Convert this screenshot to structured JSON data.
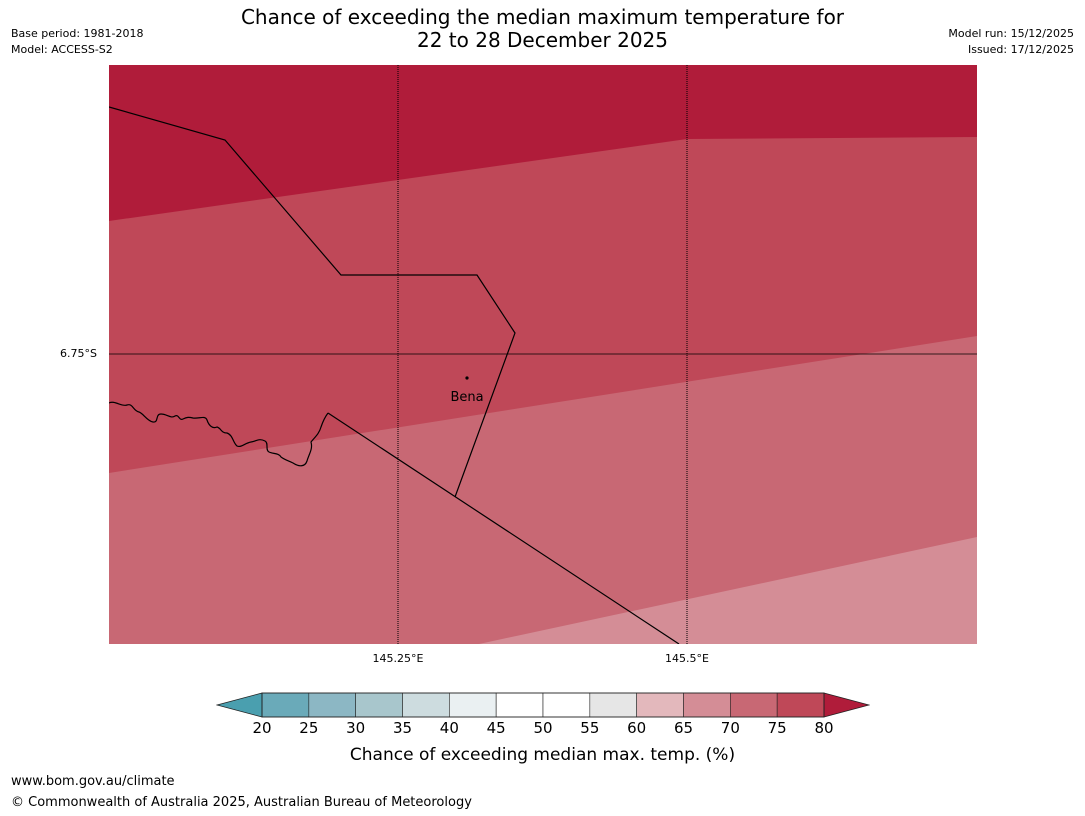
{
  "header": {
    "title_line1": "Chance of exceeding the median maximum temperature for",
    "title_line2": "22 to 28 December 2025",
    "base_period": "Base period: 1981-2018",
    "model": "Model: ACCESS-S2",
    "model_run": "Model run: 15/12/2025",
    "issued": "Issued: 17/12/2025"
  },
  "map": {
    "lat_label": "6.75°S",
    "lon_labels": [
      "145.25°E",
      "145.5°E"
    ],
    "place_label": "Bena",
    "band_colors": [
      "#b01c3a",
      "#bf4858",
      "#c86874",
      "#d48d96"
    ]
  },
  "colorbar": {
    "labels": [
      "20",
      "25",
      "30",
      "35",
      "40",
      "45",
      "50",
      "55",
      "60",
      "65",
      "70",
      "75",
      "80"
    ],
    "colors": [
      "#4a9faf",
      "#6aaab9",
      "#8cb7c4",
      "#a8c6cc",
      "#cddcdf",
      "#eaf0f2",
      "#ffffff",
      "#ffffff",
      "#e6e6e6",
      "#e3b8bc",
      "#d48d96",
      "#c86874",
      "#bf4858",
      "#b01c3a"
    ],
    "title": "Chance of exceeding median max. temp. (%)"
  },
  "footer": {
    "url": "www.bom.gov.au/climate",
    "copyright": "© Commonwealth of Australia 2025, Australian Bureau of Meteorology"
  }
}
